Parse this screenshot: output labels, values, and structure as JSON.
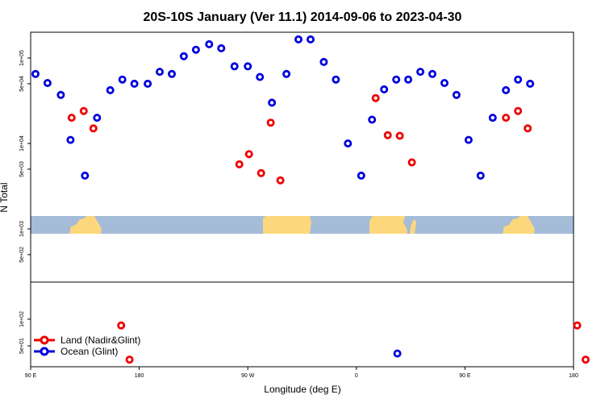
{
  "chart_data": {
    "type": "scatter",
    "title": "20S-10S January (Ver 11.1)   2014-09-06 to 2023-04-30",
    "xlabel": "Longitude (deg E)",
    "ylabel": "N Total",
    "x_ticks": [
      {
        "value": 90,
        "label": "90 E"
      },
      {
        "value": 180,
        "label": "180"
      },
      {
        "value": 270,
        "label": "90 W"
      },
      {
        "value": 360,
        "label": "0"
      },
      {
        "value": 450,
        "label": "90 E"
      },
      {
        "value": 540,
        "label": "180"
      }
    ],
    "upper_y_ticks": [
      {
        "value": 500,
        "label": "5e+02"
      },
      {
        "value": 1000,
        "label": "1e+03"
      },
      {
        "value": 5000,
        "label": "5e+03"
      },
      {
        "value": 10000,
        "label": "1e+04"
      },
      {
        "value": 50000,
        "label": "5e+04"
      },
      {
        "value": 100000,
        "label": "1e+05"
      }
    ],
    "lower_y_ticks": [
      {
        "value": 50,
        "label": "5e+01"
      },
      {
        "value": 100,
        "label": "1e+02"
      }
    ],
    "legend": {
      "position": "bottom-left",
      "entries": [
        {
          "label": "Land (Nadir&Glint)",
          "color": "#ee0000"
        },
        {
          "label": "Ocean (Glint)",
          "color": "#0000dd"
        }
      ]
    },
    "series": [
      {
        "name": "Land (Nadir&Glint)",
        "color": "#ee0000",
        "points": [
          [
            124,
            20000
          ],
          [
            134,
            24000
          ],
          [
            142,
            15000
          ],
          [
            263,
            5700
          ],
          [
            271,
            7500
          ],
          [
            281,
            4500
          ],
          [
            289,
            17500
          ],
          [
            297,
            3700
          ],
          [
            376,
            34000
          ],
          [
            386,
            12500
          ],
          [
            396,
            12300
          ],
          [
            406,
            6000
          ],
          [
            484,
            20000
          ],
          [
            494,
            24000
          ],
          [
            502,
            15000
          ],
          [
            165,
            85
          ],
          [
            172,
            35
          ],
          [
            543,
            85
          ],
          [
            550,
            35
          ]
        ]
      },
      {
        "name": "Ocean (Glint)",
        "color": "#0000dd",
        "points": [
          [
            94,
            65000
          ],
          [
            104,
            51000
          ],
          [
            115,
            37000
          ],
          [
            123,
            11000
          ],
          [
            135,
            4200
          ],
          [
            145,
            20000
          ],
          [
            156,
            42000
          ],
          [
            166,
            56000
          ],
          [
            176,
            50000
          ],
          [
            187,
            50000
          ],
          [
            197,
            69000
          ],
          [
            207,
            65000
          ],
          [
            217,
            105000
          ],
          [
            227,
            125000
          ],
          [
            238,
            145000
          ],
          [
            248,
            130000
          ],
          [
            259,
            80000
          ],
          [
            270,
            80000
          ],
          [
            280,
            60000
          ],
          [
            290,
            30000
          ],
          [
            302,
            65000
          ],
          [
            312,
            165000
          ],
          [
            322,
            165000
          ],
          [
            333,
            90000
          ],
          [
            343,
            56000
          ],
          [
            353,
            10000
          ],
          [
            364,
            4200
          ],
          [
            373,
            19000
          ],
          [
            383,
            43000
          ],
          [
            393,
            56000
          ],
          [
            403,
            56000
          ],
          [
            413,
            69000
          ],
          [
            423,
            65000
          ],
          [
            433,
            51000
          ],
          [
            443,
            37000
          ],
          [
            453,
            11000
          ],
          [
            463,
            4200
          ],
          [
            473,
            20000
          ],
          [
            484,
            42000
          ],
          [
            494,
            56000
          ],
          [
            504,
            50000
          ],
          [
            394,
            41
          ]
        ]
      }
    ]
  }
}
